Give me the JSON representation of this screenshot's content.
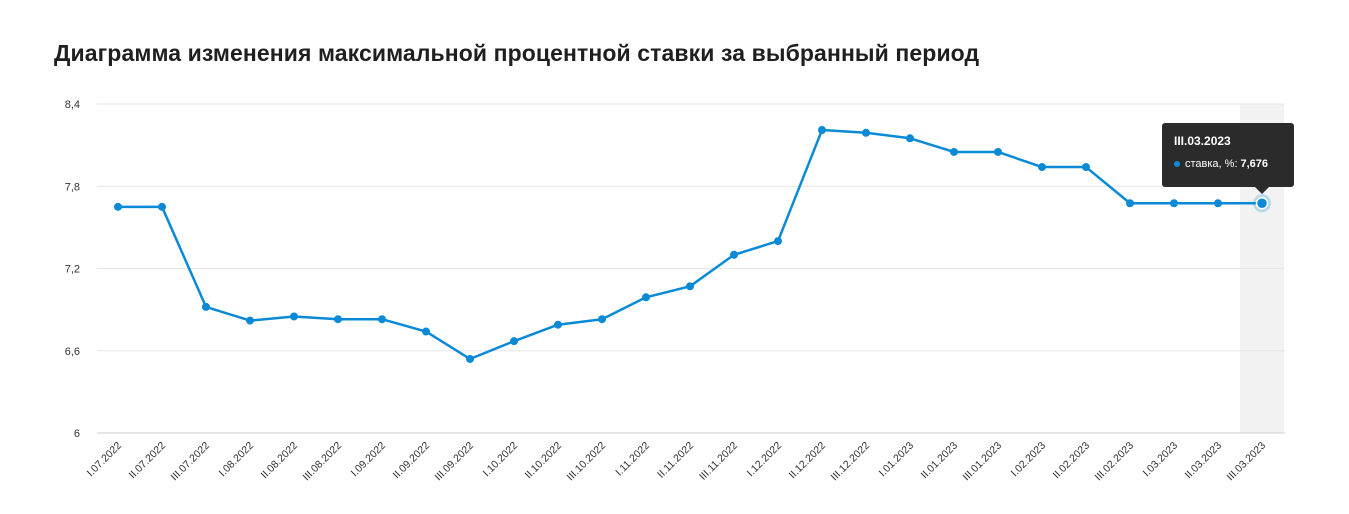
{
  "title": "Диаграмма изменения максимальной процентной ставки за выбранный период",
  "colors": {
    "series": "#0a8ad6",
    "grid": "#e6e6e6",
    "highlight_band": "#f2f2f2",
    "tooltip_bg": "#2b2b2b"
  },
  "chart_data": {
    "type": "line",
    "title": "Диаграмма изменения максимальной процентной ставки за выбранный период",
    "ylim": [
      6,
      8.4
    ],
    "yticks": [
      "6",
      "6,6",
      "7,2",
      "7,8",
      "8,4"
    ],
    "ytick_values": [
      6,
      6.6,
      7.2,
      7.8,
      8.4
    ],
    "grid": true,
    "categories": [
      "I.07.2022",
      "II.07.2022",
      "III.07.2022",
      "I.08.2022",
      "II.08.2022",
      "III.08.2022",
      "I.09.2022",
      "II.09.2022",
      "III.09.2022",
      "I.10.2022",
      "II.10.2022",
      "III.10.2022",
      "I.11.2022",
      "II.11.2022",
      "III.11.2022",
      "I.12.2022",
      "II.12.2022",
      "III.12.2022",
      "I.01.2023",
      "II.01.2023",
      "III.01.2023",
      "I.02.2023",
      "II.02.2023",
      "III.02.2023",
      "I.03.2023",
      "II.03.2023",
      "III.03.2023"
    ],
    "series": [
      {
        "name": "ставка, %",
        "values": [
          7.65,
          7.65,
          6.92,
          6.82,
          6.85,
          6.83,
          6.83,
          6.74,
          6.54,
          6.67,
          6.79,
          6.83,
          6.99,
          7.07,
          7.3,
          7.4,
          8.21,
          8.19,
          8.15,
          8.05,
          8.05,
          7.94,
          7.94,
          7.676,
          7.676,
          7.676,
          7.676
        ]
      }
    ],
    "highlight_index": 26
  },
  "tooltip": {
    "title": "III.03.2023",
    "label": "ставка, %:",
    "value": "7,676"
  }
}
